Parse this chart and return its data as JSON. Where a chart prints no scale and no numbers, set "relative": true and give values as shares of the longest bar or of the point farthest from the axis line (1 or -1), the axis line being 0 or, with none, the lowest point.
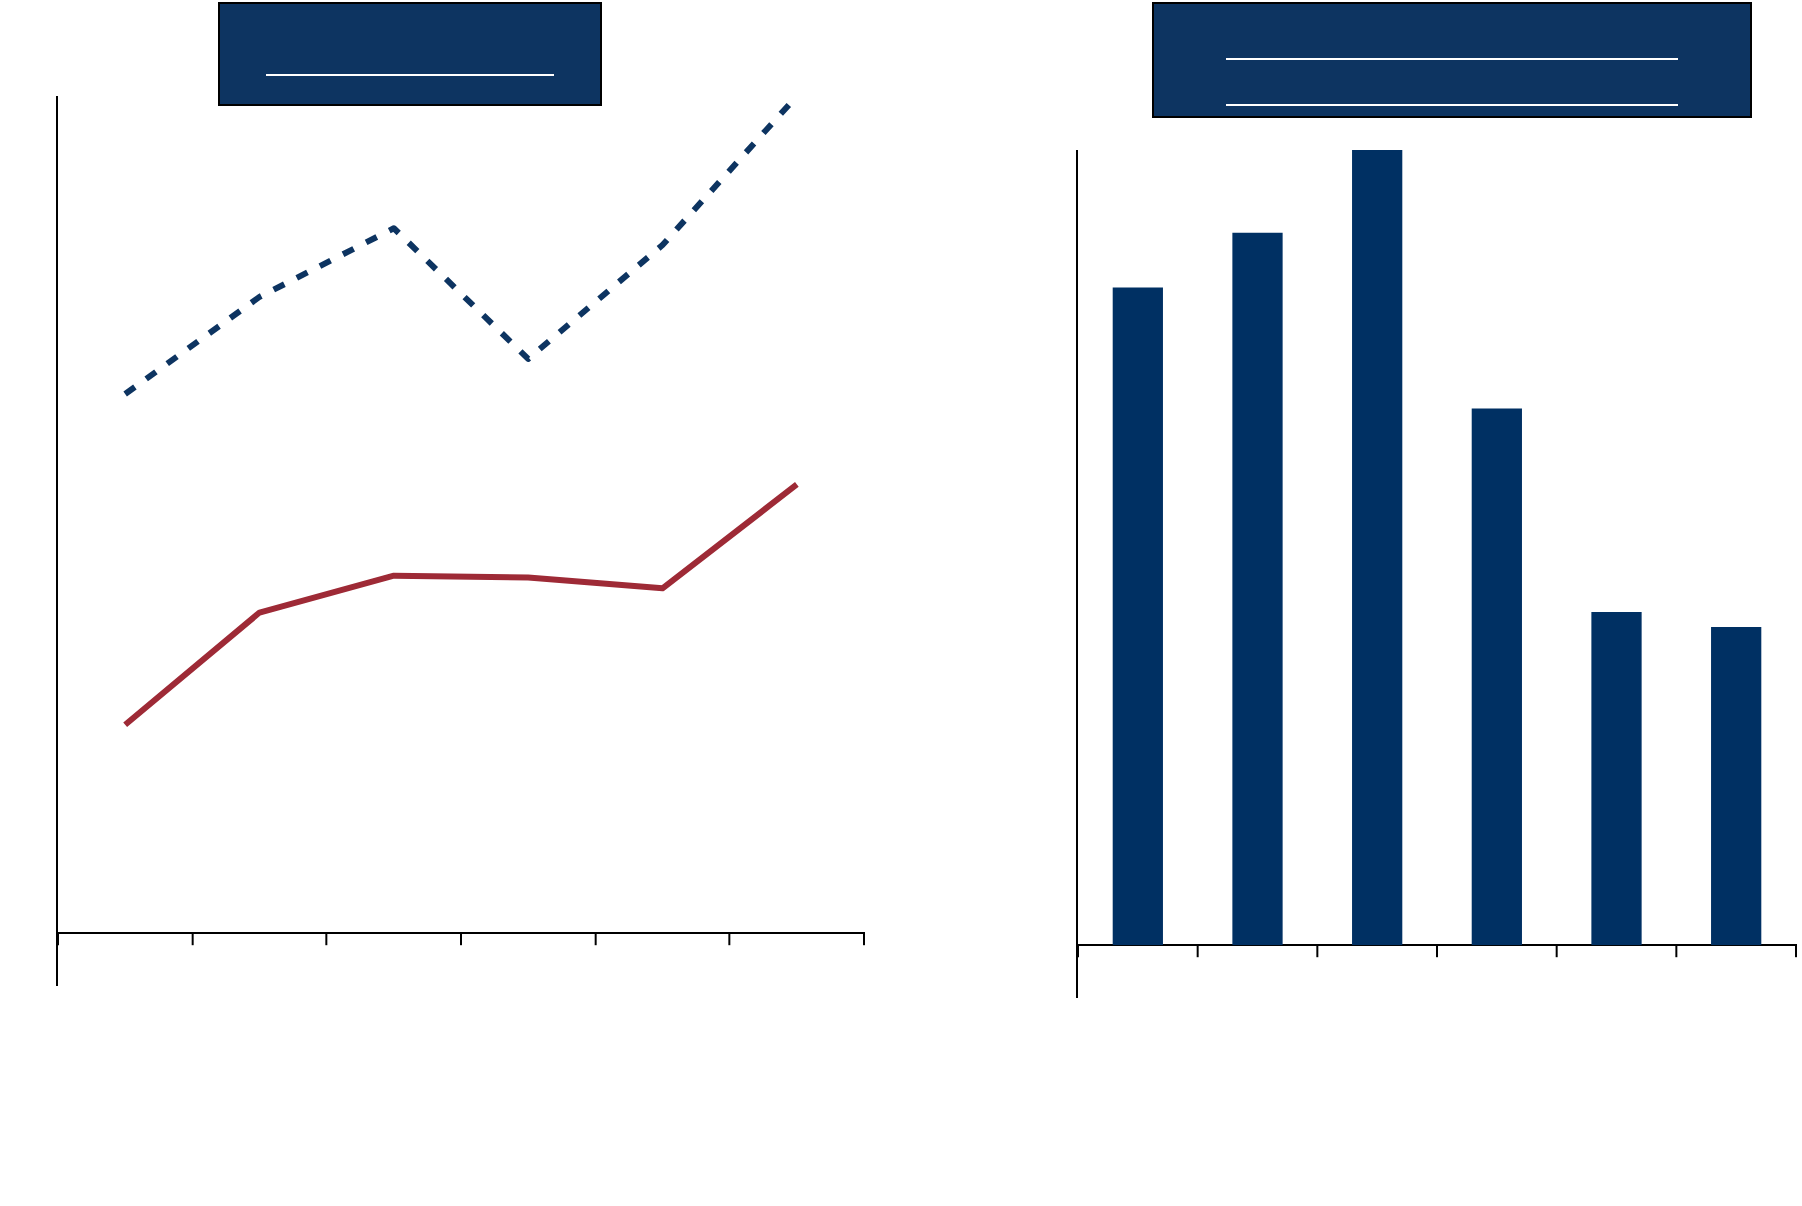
{
  "chart_data": [
    {
      "type": "line",
      "relative": true,
      "categories": [
        null,
        null,
        null,
        null,
        null,
        null
      ],
      "series": [
        {
          "color": "#0d3461",
          "line_style": "dashed",
          "values": [
            0.644,
            0.76,
            0.842,
            0.686,
            0.822,
            1.0
          ]
        },
        {
          "color": "#9e2a36",
          "line_style": "solid",
          "values": [
            0.249,
            0.383,
            0.427,
            0.425,
            0.412,
            0.536
          ]
        }
      ],
      "marker": "none",
      "grid": false,
      "legend": false
    },
    {
      "type": "bar",
      "relative": true,
      "categories": [
        null,
        null,
        null,
        null,
        null,
        null
      ],
      "values": [
        0.827,
        0.896,
        1.0,
        0.675,
        0.419,
        0.4
      ],
      "color": "#003063",
      "grid": false,
      "legend": false
    }
  ]
}
